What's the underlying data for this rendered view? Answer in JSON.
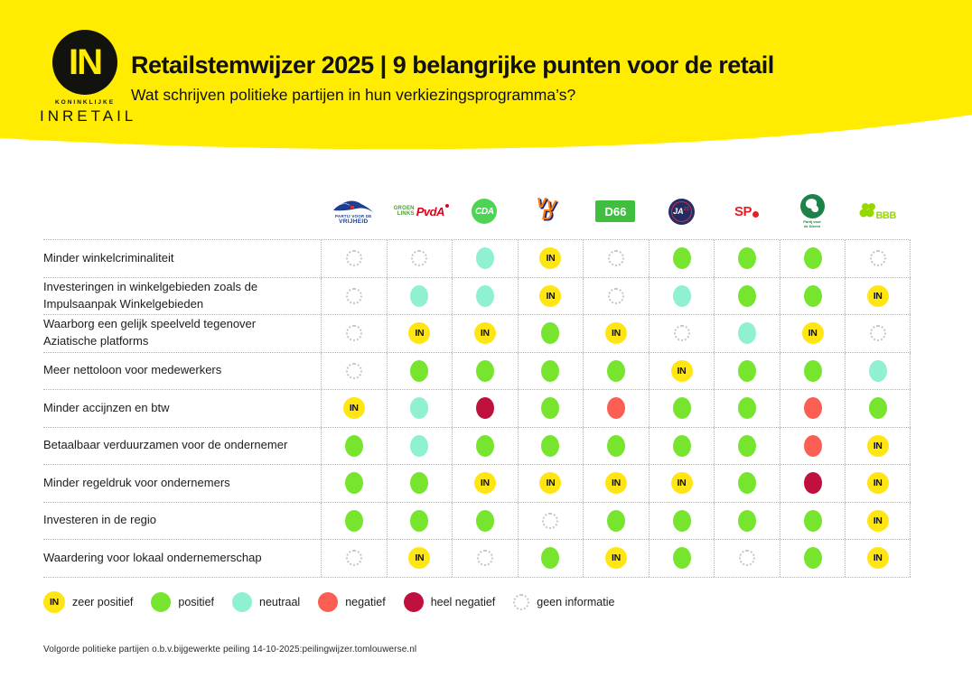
{
  "header": {
    "logo": {
      "mark": "IN",
      "koninklijke": "KONINKLIJKE",
      "brand": "INRETAIL"
    },
    "title": "Retailstemwijzer 2025 | 9 belangrijke punten voor de retail",
    "subtitle": "Wat schrijven politieke partijen in hun verkiezingsprogramma’s?"
  },
  "parties": [
    {
      "name": "PVV",
      "line1": "PARTIJ VOOR DE",
      "line2": "VRIJHEID"
    },
    {
      "name": "GroenLinks-PvdA",
      "groen": "GROEN",
      "links": "LINKS",
      "pvda": "PvdA"
    },
    {
      "name": "CDA",
      "text": "CDA"
    },
    {
      "name": "VVD",
      "v1": "V",
      "v2": "V",
      "d": "D"
    },
    {
      "name": "D66",
      "text": "D66"
    },
    {
      "name": "JA21",
      "ja": "JA",
      "num": "21"
    },
    {
      "name": "SP",
      "text": "SP"
    },
    {
      "name": "Partij voor de Dieren",
      "line1": "Partij voor",
      "line2": "de Dieren"
    },
    {
      "name": "BBB",
      "text": "BBB"
    }
  ],
  "topics": [
    {
      "label": "Minder winkelcriminaliteit",
      "values": [
        "geen-informatie",
        "geen-informatie",
        "neutraal",
        "zeer-positief",
        "geen-informatie",
        "positief",
        "positief",
        "positief",
        "geen-informatie"
      ]
    },
    {
      "label": "Investeringen in winkelgebieden zoals de Impulsaanpak Winkelgebieden",
      "values": [
        "geen-informatie",
        "neutraal",
        "neutraal",
        "zeer-positief",
        "geen-informatie",
        "neutraal",
        "positief",
        "positief",
        "zeer-positief"
      ]
    },
    {
      "label": "Waarborg een gelijk speelveld tegenover Aziatische platforms",
      "values": [
        "geen-informatie",
        "zeer-positief",
        "zeer-positief",
        "positief",
        "zeer-positief",
        "geen-informatie",
        "neutraal",
        "zeer-positief",
        "geen-informatie"
      ]
    },
    {
      "label": "Meer nettoloon voor medewerkers",
      "values": [
        "geen-informatie",
        "positief",
        "positief",
        "positief",
        "positief",
        "zeer-positief",
        "positief",
        "positief",
        "neutraal"
      ]
    },
    {
      "label": "Minder accijnzen en btw",
      "values": [
        "zeer-positief",
        "neutraal",
        "heel-negatief",
        "positief",
        "negatief",
        "positief",
        "positief",
        "negatief",
        "positief"
      ]
    },
    {
      "label": "Betaalbaar verduurzamen voor de ondernemer",
      "values": [
        "positief",
        "neutraal",
        "positief",
        "positief",
        "positief",
        "positief",
        "positief",
        "negatief",
        "zeer-positief"
      ]
    },
    {
      "label": "Minder regeldruk voor ondernemers",
      "values": [
        "positief",
        "positief",
        "zeer-positief",
        "zeer-positief",
        "zeer-positief",
        "zeer-positief",
        "positief",
        "heel-negatief",
        "zeer-positief"
      ]
    },
    {
      "label": "Investeren in de regio",
      "values": [
        "positief",
        "positief",
        "positief",
        "geen-informatie",
        "positief",
        "positief",
        "positief",
        "positief",
        "zeer-positief"
      ]
    },
    {
      "label": "Waardering voor lokaal ondernemerschap",
      "values": [
        "geen-informatie",
        "zeer-positief",
        "geen-informatie",
        "positief",
        "zeer-positief",
        "positief",
        "geen-informatie",
        "positief",
        "zeer-positief"
      ]
    }
  ],
  "in_badge_text": "IN",
  "legend": [
    {
      "key": "zeer-positief",
      "label": "zeer positief"
    },
    {
      "key": "positief",
      "label": "positief"
    },
    {
      "key": "neutraal",
      "label": "neutraal"
    },
    {
      "key": "negatief",
      "label": "negatief"
    },
    {
      "key": "heel-negatief",
      "label": "heel negatief"
    },
    {
      "key": "geen-informatie",
      "label": "geen informatie"
    }
  ],
  "footer": "Volgorde politieke partijen o.b.v.bijgewerkte peiling 14-10-2025:peilingwijzer.tomlouwerse.nl",
  "colors": {
    "banner_yellow": "#ffec00",
    "zeer_positief": "#ffe512",
    "positief": "#77e52d",
    "neutraal": "#8ff0d2",
    "negatief": "#fb5f53",
    "heel_negatief": "#c0103e",
    "geen_informatie": "#c6c6c6"
  }
}
